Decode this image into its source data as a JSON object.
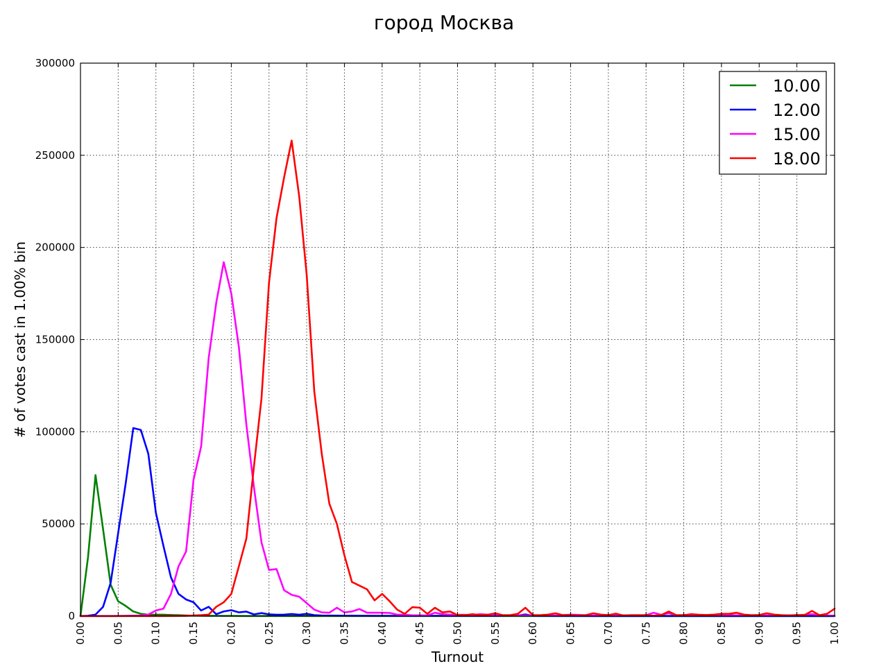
{
  "chart_data": {
    "type": "line",
    "title": "город Москва",
    "xlabel": "Turnout",
    "ylabel": "# of votes cast in 1.00% bin",
    "xlim": [
      0.0,
      1.0
    ],
    "ylim": [
      0,
      300000
    ],
    "xticks": [
      0.0,
      0.05,
      0.1,
      0.15,
      0.2,
      0.25,
      0.3,
      0.35,
      0.4,
      0.45,
      0.5,
      0.55,
      0.6,
      0.65,
      0.7,
      0.75,
      0.8,
      0.85,
      0.9,
      0.95,
      1.0
    ],
    "xtick_labels": [
      "0.00",
      "0.05",
      "0.10",
      "0.15",
      "0.20",
      "0.25",
      "0.30",
      "0.35",
      "0.40",
      "0.45",
      "0.50",
      "0.55",
      "0.60",
      "0.65",
      "0.70",
      "0.75",
      "0.80",
      "0.85",
      "0.90",
      "0.95",
      "1.00"
    ],
    "yticks": [
      0,
      50000,
      100000,
      150000,
      200000,
      250000,
      300000
    ],
    "ytick_labels": [
      "0",
      "50000",
      "100000",
      "150000",
      "200000",
      "250000",
      "300000"
    ],
    "grid": true,
    "legend_position": "top-right",
    "series": [
      {
        "name": "10.00",
        "color": "#008000",
        "x": [
          0.0,
          0.01,
          0.02,
          0.03,
          0.04,
          0.05,
          0.06,
          0.07,
          0.08,
          0.09,
          0.1,
          0.11,
          0.12,
          0.13,
          0.14,
          0.15,
          0.16,
          0.17,
          0.18,
          0.19,
          0.2,
          0.22,
          0.25,
          0.3,
          0.4,
          0.5,
          0.6,
          0.7,
          0.8,
          0.9,
          1.0
        ],
        "y": [
          0,
          32000,
          76500,
          47000,
          17000,
          8000,
          5500,
          2500,
          1200,
          700,
          800,
          700,
          600,
          500,
          300,
          200,
          150,
          100,
          100,
          80,
          60,
          50,
          40,
          30,
          20,
          10,
          10,
          10,
          10,
          10,
          10
        ]
      },
      {
        "name": "12.00",
        "color": "#0000ff",
        "x": [
          0.0,
          0.01,
          0.02,
          0.03,
          0.04,
          0.05,
          0.06,
          0.07,
          0.08,
          0.09,
          0.1,
          0.11,
          0.12,
          0.13,
          0.14,
          0.15,
          0.16,
          0.17,
          0.18,
          0.19,
          0.2,
          0.21,
          0.22,
          0.23,
          0.24,
          0.25,
          0.26,
          0.27,
          0.28,
          0.29,
          0.3,
          0.31,
          0.32,
          0.35,
          0.4,
          0.45,
          0.5,
          0.55,
          0.58,
          0.59,
          0.6,
          0.7,
          0.8,
          0.9,
          1.0
        ],
        "y": [
          0,
          200,
          800,
          5000,
          18000,
          45000,
          72000,
          102000,
          101000,
          88000,
          56000,
          38000,
          21000,
          12000,
          9000,
          7500,
          3000,
          5000,
          1000,
          2500,
          3200,
          2000,
          2400,
          900,
          1600,
          900,
          700,
          800,
          1100,
          700,
          1200,
          500,
          300,
          200,
          100,
          100,
          100,
          100,
          300,
          900,
          100,
          50,
          50,
          50,
          50
        ]
      },
      {
        "name": "15.00",
        "color": "#ff00ff",
        "x": [
          0.0,
          0.04,
          0.06,
          0.08,
          0.09,
          0.1,
          0.11,
          0.12,
          0.13,
          0.14,
          0.15,
          0.16,
          0.17,
          0.18,
          0.19,
          0.2,
          0.21,
          0.22,
          0.23,
          0.24,
          0.25,
          0.26,
          0.27,
          0.28,
          0.29,
          0.3,
          0.31,
          0.32,
          0.33,
          0.34,
          0.35,
          0.36,
          0.37,
          0.38,
          0.39,
          0.4,
          0.41,
          0.42,
          0.43,
          0.44,
          0.45,
          0.46,
          0.47,
          0.48,
          0.49,
          0.5,
          0.52,
          0.53,
          0.55,
          0.57,
          0.6,
          0.63,
          0.65,
          0.68,
          0.7,
          0.73,
          0.75,
          0.76,
          0.77,
          0.78,
          0.79,
          0.8,
          0.85,
          0.9,
          0.95,
          0.97,
          0.98,
          1.0
        ],
        "y": [
          0,
          0,
          100,
          300,
          800,
          3000,
          4000,
          12000,
          27000,
          35000,
          74000,
          92000,
          140000,
          170000,
          192000,
          175000,
          146000,
          104000,
          70000,
          40000,
          25000,
          25500,
          14000,
          11500,
          10500,
          7000,
          3500,
          2000,
          1800,
          4500,
          2000,
          2500,
          3800,
          1800,
          1800,
          1800,
          1700,
          800,
          700,
          400,
          400,
          300,
          1800,
          1000,
          800,
          700,
          600,
          1000,
          500,
          400,
          300,
          300,
          800,
          300,
          600,
          300,
          500,
          1800,
          700,
          1500,
          500,
          500,
          500,
          300,
          400,
          1000,
          500,
          200
        ]
      },
      {
        "name": "18.00",
        "color": "#ff0000",
        "x": [
          0.0,
          0.1,
          0.14,
          0.16,
          0.17,
          0.18,
          0.19,
          0.2,
          0.21,
          0.22,
          0.23,
          0.24,
          0.25,
          0.26,
          0.27,
          0.28,
          0.29,
          0.3,
          0.31,
          0.32,
          0.33,
          0.34,
          0.35,
          0.36,
          0.37,
          0.38,
          0.39,
          0.4,
          0.41,
          0.42,
          0.43,
          0.44,
          0.45,
          0.46,
          0.47,
          0.48,
          0.49,
          0.5,
          0.51,
          0.52,
          0.53,
          0.54,
          0.55,
          0.56,
          0.57,
          0.58,
          0.59,
          0.6,
          0.61,
          0.62,
          0.63,
          0.64,
          0.65,
          0.66,
          0.67,
          0.68,
          0.69,
          0.7,
          0.71,
          0.72,
          0.73,
          0.74,
          0.75,
          0.76,
          0.77,
          0.78,
          0.79,
          0.8,
          0.81,
          0.82,
          0.83,
          0.84,
          0.85,
          0.86,
          0.87,
          0.88,
          0.89,
          0.9,
          0.91,
          0.92,
          0.93,
          0.94,
          0.95,
          0.96,
          0.97,
          0.98,
          0.99,
          1.0
        ],
        "y": [
          0,
          0,
          100,
          500,
          800,
          5000,
          7500,
          12000,
          27000,
          42000,
          81000,
          118000,
          181000,
          216000,
          238000,
          258000,
          228000,
          185000,
          122000,
          88000,
          61000,
          50000,
          33000,
          18500,
          16500,
          14500,
          8500,
          12000,
          8000,
          3500,
          1200,
          4800,
          4500,
          1200,
          4500,
          2000,
          2500,
          500,
          500,
          1000,
          500,
          700,
          1500,
          500,
          500,
          1200,
          4500,
          500,
          500,
          800,
          1500,
          500,
          500,
          300,
          500,
          1500,
          800,
          500,
          1300,
          300,
          500,
          500,
          500,
          200,
          500,
          2500,
          500,
          500,
          1000,
          700,
          600,
          800,
          1200,
          1200,
          1800,
          800,
          500,
          600,
          1500,
          800,
          500,
          300,
          600,
          500,
          2800,
          500,
          1200,
          4000
        ]
      }
    ]
  }
}
